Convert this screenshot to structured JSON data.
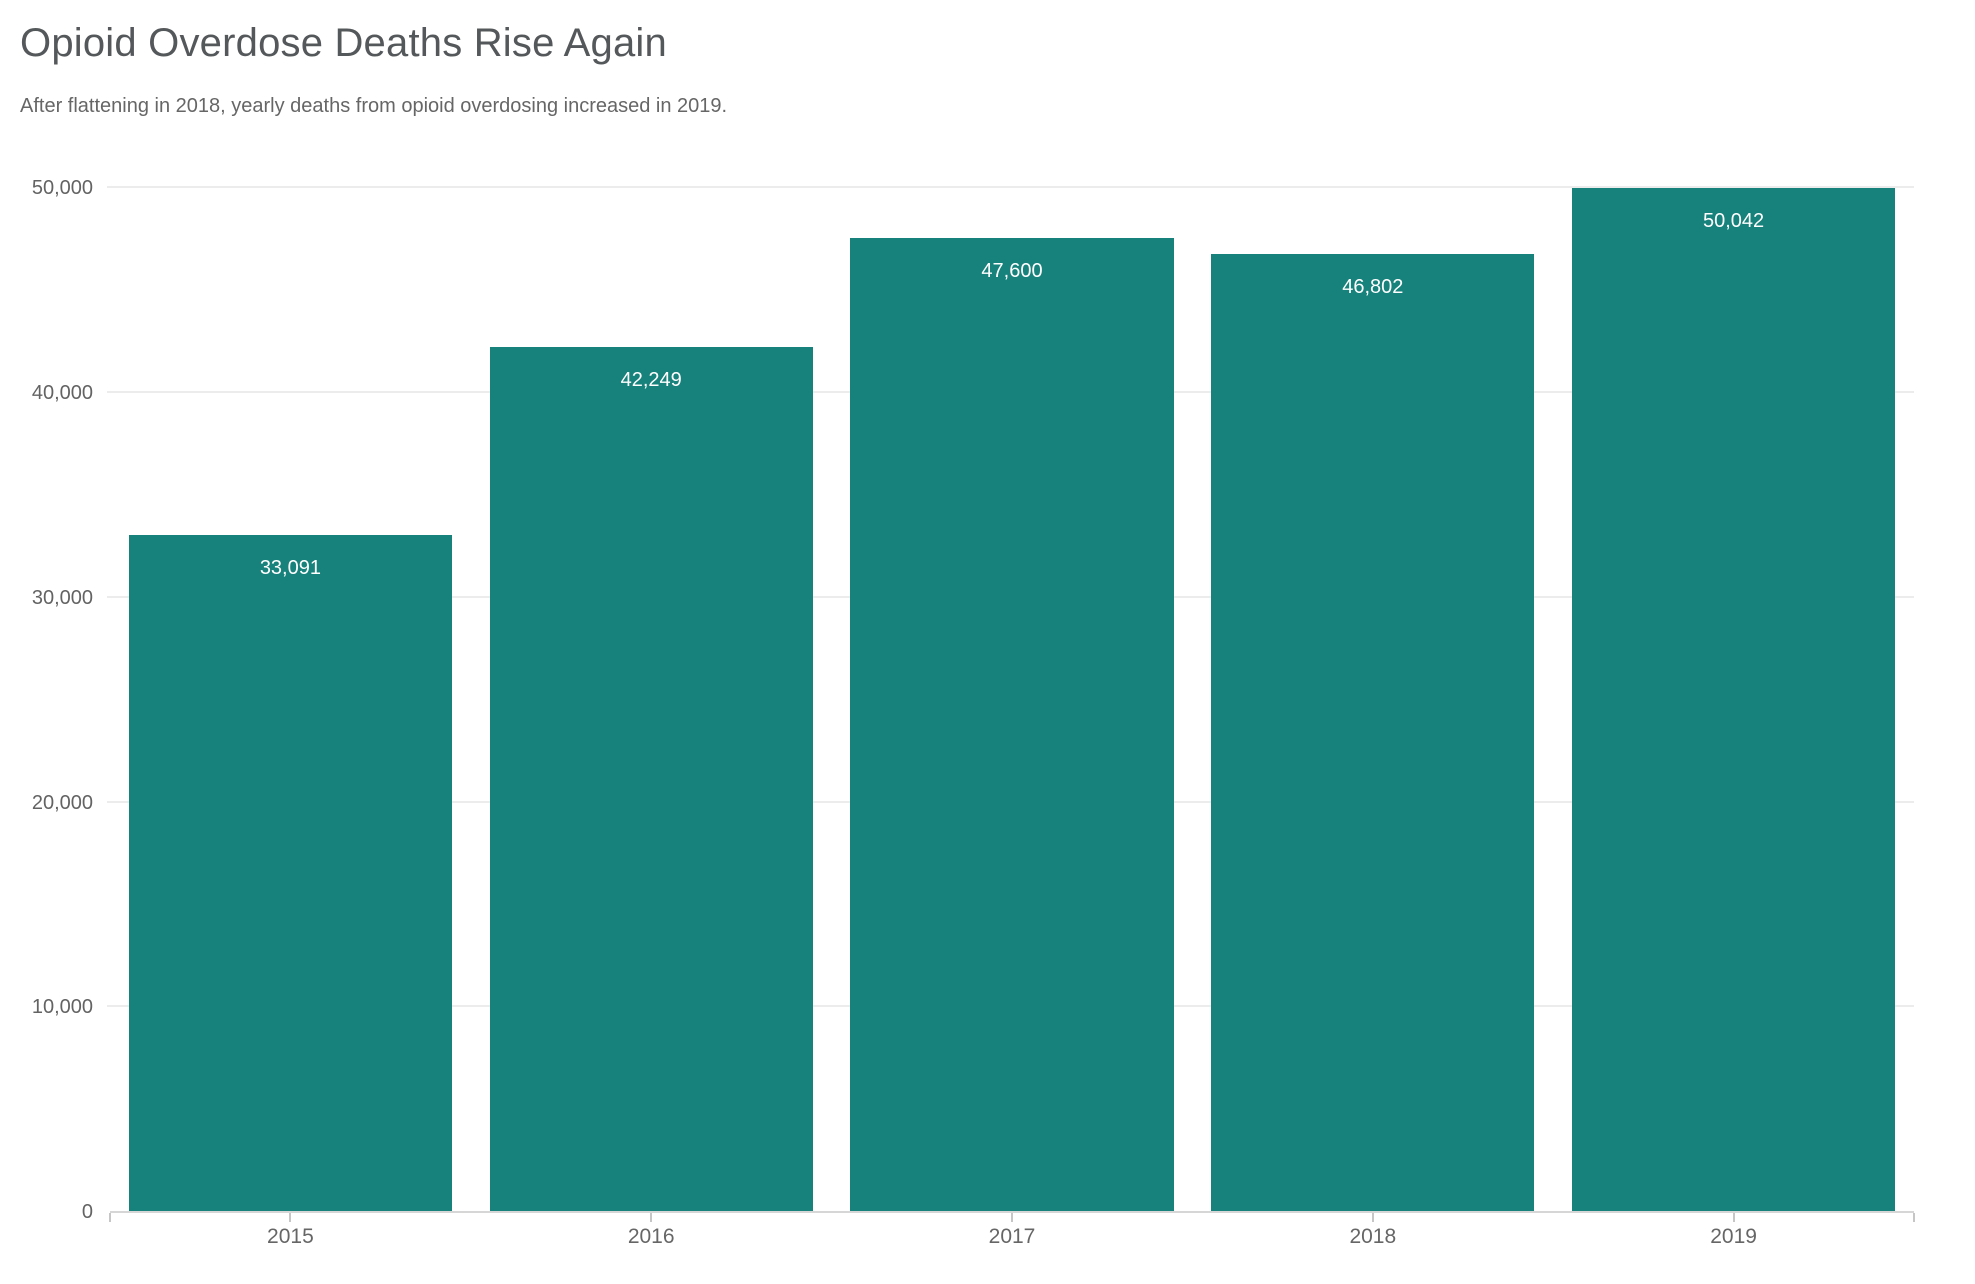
{
  "page": {
    "title": "Opioid Overdose Deaths Rise Again",
    "subtitle": "After flattening in 2018, yearly deaths from opioid overdosing increased in 2019."
  },
  "chart_data": {
    "type": "bar",
    "title": "Opioid Overdose Deaths Rise Again",
    "subtitle": "After flattening in 2018, yearly deaths from opioid overdosing increased in 2019.",
    "categories": [
      "2015",
      "2016",
      "2017",
      "2018",
      "2019"
    ],
    "values": [
      33091,
      42249,
      47600,
      46802,
      50042
    ],
    "value_labels": [
      "33,091",
      "42,249",
      "47,600",
      "46,802",
      "50,042"
    ],
    "xlabel": "",
    "ylabel": "",
    "ylim": [
      0,
      50000
    ],
    "yticks": [
      {
        "value": 0,
        "label": "0"
      },
      {
        "value": 10000,
        "label": "10,000"
      },
      {
        "value": 20000,
        "label": "20,000"
      },
      {
        "value": 30000,
        "label": "30,000"
      },
      {
        "value": 40000,
        "label": "40,000"
      },
      {
        "value": 50000,
        "label": "50,000"
      }
    ],
    "grid": "horizontal",
    "legend_position": "none",
    "colors": {
      "bar": "#17817B",
      "value_label": "#FFFFFF",
      "gridline": "#ECECEC",
      "axis_line": "#D6D6D6",
      "tick": "#C6C6C6",
      "title": "#55585A",
      "subtitle": "#666666",
      "axis_label": "#636363"
    }
  }
}
